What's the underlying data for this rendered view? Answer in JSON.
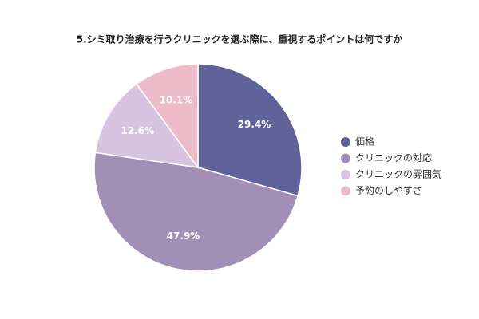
{
  "chart_data": {
    "type": "pie",
    "title": "5.シミ取り治療を行うクリニックを選ぶ際に、重視するポイントは何ですか",
    "categories": [
      "価格",
      "クリニックの対応",
      "クリニックの雰囲気",
      "予約のしやすさ"
    ],
    "values": [
      29.4,
      47.9,
      12.6,
      10.1
    ],
    "value_labels": [
      "29.4%",
      "47.9%",
      "12.6%",
      "10.1%"
    ],
    "colors": [
      "#5f6399",
      "#a18fb5",
      "#d6c4e0",
      "#ecbccb"
    ],
    "legend": "right"
  }
}
